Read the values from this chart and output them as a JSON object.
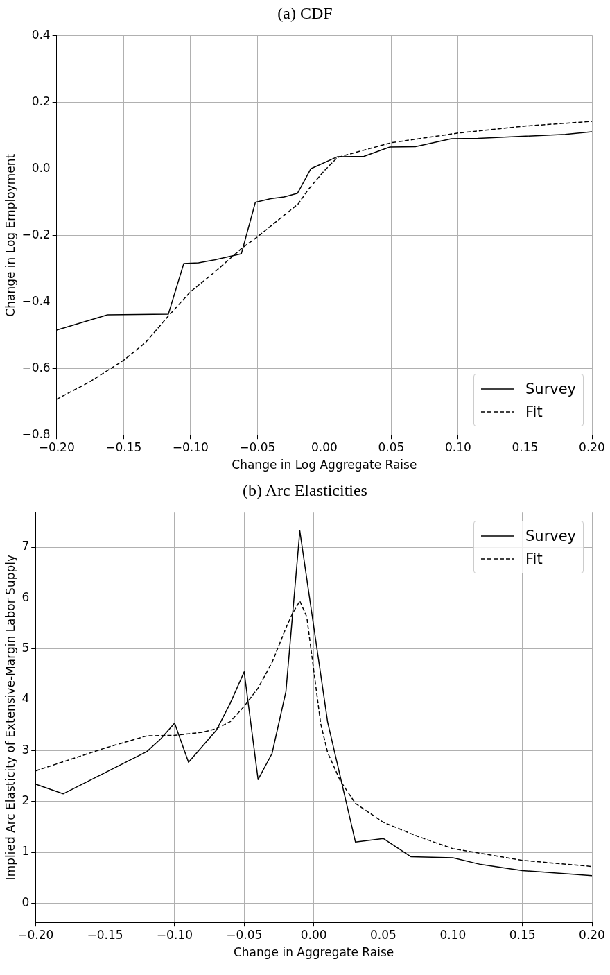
{
  "chart_data": [
    {
      "type": "line",
      "title": "(a) CDF",
      "xlabel": "Change in Log Aggregate Raise",
      "ylabel": "Change in Log Employment",
      "xlim": [
        -0.2,
        0.2
      ],
      "xticks": [
        {
          "value": -0.2,
          "label": "−0.20"
        },
        {
          "value": -0.15,
          "label": "−0.15"
        },
        {
          "value": -0.1,
          "label": "−0.10"
        },
        {
          "value": -0.05,
          "label": "−0.05"
        },
        {
          "value": 0,
          "label": "0.00"
        },
        {
          "value": 0.05,
          "label": "0.05"
        },
        {
          "value": 0.1,
          "label": "0.10"
        },
        {
          "value": 0.15,
          "label": "0.15"
        },
        {
          "value": 0.2,
          "label": "0.20"
        }
      ],
      "ylim": [
        -0.8,
        0.4
      ],
      "yticks": [
        {
          "value": -0.8,
          "label": "−0.8"
        },
        {
          "value": -0.6,
          "label": "−0.6"
        },
        {
          "value": -0.4,
          "label": "−0.4"
        },
        {
          "value": -0.2,
          "label": "−0.2"
        },
        {
          "value": 0,
          "label": "0.0"
        },
        0.2,
        0.4
      ],
      "grid": true,
      "legend": "bottom right",
      "series": [
        {
          "name": "Survey",
          "color": "#000000",
          "line_style": "solid",
          "x": [
            -0.2,
            -0.162,
            -0.1165,
            -0.105,
            -0.094,
            -0.082,
            -0.062,
            -0.0515,
            -0.04,
            -0.03,
            -0.02,
            -0.01,
            0.01,
            0.0296,
            0.049,
            0.068,
            0.095,
            0.115,
            0.18,
            0.2
          ],
          "values": [
            -0.485,
            -0.439,
            -0.437,
            -0.285,
            -0.283,
            -0.274,
            -0.256,
            -0.101,
            -0.09,
            -0.085,
            -0.074,
            0.0,
            0.036,
            0.037,
            0.065,
            0.066,
            0.09,
            0.091,
            0.103,
            0.111
          ]
        },
        {
          "name": "Fit",
          "color": "#000000",
          "line_style": "dashed",
          "x": [
            -0.2,
            -0.175,
            -0.15,
            -0.1335,
            -0.117,
            -0.1,
            -0.082,
            -0.061,
            -0.05,
            -0.0195,
            -0.012,
            0.0,
            0.01,
            0.05,
            0.1,
            0.15,
            0.2
          ],
          "values": [
            -0.693,
            -0.64,
            -0.576,
            -0.522,
            -0.445,
            -0.37,
            -0.311,
            -0.237,
            -0.205,
            -0.106,
            -0.063,
            -0.006,
            0.034,
            0.078,
            0.107,
            0.128,
            0.142
          ]
        }
      ]
    },
    {
      "type": "line",
      "title": "(b) Arc Elasticities",
      "xlabel": "Change in Aggregate Raise",
      "ylabel": "Implied Arc Elasticity of Extensive-Margin Labor Supply",
      "xlim": [
        -0.2,
        0.2
      ],
      "xticks": [
        {
          "value": -0.2,
          "label": "−0.20"
        },
        {
          "value": -0.15,
          "label": "−0.15"
        },
        {
          "value": -0.1,
          "label": "−0.10"
        },
        {
          "value": -0.05,
          "label": "−0.05"
        },
        {
          "value": 0,
          "label": "0.00"
        },
        {
          "value": 0.05,
          "label": "0.05"
        },
        {
          "value": 0.1,
          "label": "0.10"
        },
        {
          "value": 0.15,
          "label": "0.15"
        },
        {
          "value": 0.2,
          "label": "0.20"
        }
      ],
      "ylim": [
        -0.38,
        7.68
      ],
      "yticks": [
        0,
        1,
        2,
        3,
        4,
        5,
        6,
        7
      ],
      "grid": true,
      "legend": "top right",
      "series": [
        {
          "name": "Survey",
          "color": "#000000",
          "line_style": "solid",
          "x": [
            -0.2,
            -0.18,
            -0.12,
            -0.11,
            -0.1,
            -0.09,
            -0.07,
            -0.06,
            -0.05,
            -0.04,
            -0.03,
            -0.02,
            -0.01,
            0.01,
            0.03,
            0.05,
            0.07,
            0.1,
            0.12,
            0.15,
            0.2
          ],
          "values": [
            2.34,
            2.15,
            2.98,
            3.23,
            3.54,
            2.77,
            3.4,
            3.93,
            4.55,
            2.43,
            2.94,
            4.16,
            7.32,
            3.56,
            1.2,
            1.27,
            0.91,
            0.89,
            0.76,
            0.64,
            0.54
          ]
        },
        {
          "name": "Fit",
          "color": "#000000",
          "line_style": "dashed",
          "x": [
            -0.2,
            -0.15,
            -0.12,
            -0.1,
            -0.08,
            -0.07,
            -0.06,
            -0.05,
            -0.04,
            -0.03,
            -0.02,
            -0.015,
            -0.01,
            -0.005,
            0.0,
            0.005,
            0.01,
            0.019,
            0.03,
            0.05,
            0.075,
            0.1,
            0.15,
            0.2
          ],
          "values": [
            2.6,
            3.05,
            3.29,
            3.3,
            3.36,
            3.43,
            3.57,
            3.87,
            4.23,
            4.73,
            5.41,
            5.71,
            5.94,
            5.63,
            4.58,
            3.53,
            2.96,
            2.41,
            1.96,
            1.59,
            1.31,
            1.07,
            0.84,
            0.72
          ]
        }
      ]
    }
  ]
}
